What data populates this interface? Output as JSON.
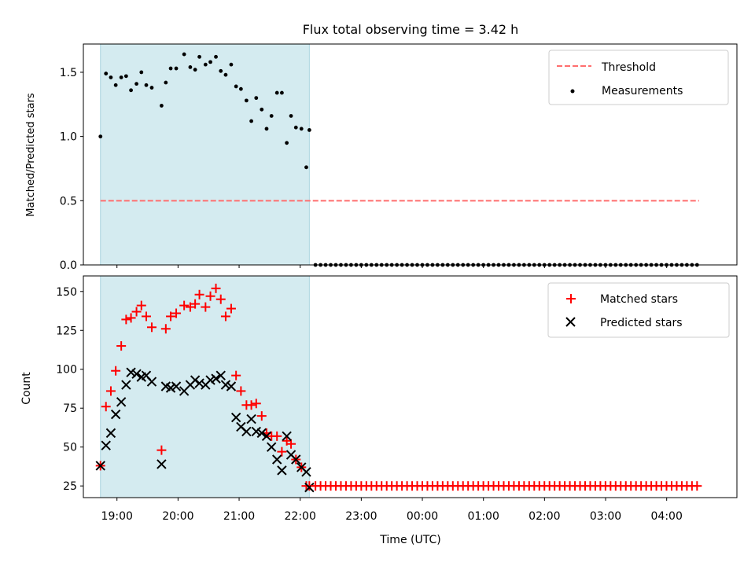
{
  "chart_data": [
    {
      "type": "scatter",
      "title": "Flux total observing time = 3.42 h",
      "xlabel": "",
      "ylabel": "Matched/Predicted stars",
      "xlim": [
        18.45,
        29.15
      ],
      "ylim": [
        0,
        1.72
      ],
      "yticks": [
        0.0,
        0.5,
        1.0,
        1.5
      ],
      "ytick_labels": [
        "0.0",
        "0.5",
        "1.0",
        "1.5"
      ],
      "shaded_region": {
        "x_start": 18.73,
        "x_end": 22.15,
        "color": "#d4ebf0"
      },
      "legend": {
        "position": "top-right",
        "entries": [
          "Threshold",
          "Measurements"
        ]
      },
      "series": [
        {
          "name": "Threshold",
          "style": "dashed-line",
          "color": "#ff6e6e",
          "x": [
            18.73,
            28.53
          ],
          "y": [
            0.5,
            0.5
          ]
        },
        {
          "name": "Measurements",
          "style": "dot",
          "color": "#000000",
          "x": [
            18.73,
            18.82,
            18.9,
            18.98,
            19.07,
            19.15,
            19.23,
            19.32,
            19.4,
            19.48,
            19.57,
            19.73,
            19.8,
            19.88,
            19.97,
            20.1,
            20.2,
            20.28,
            20.35,
            20.45,
            20.53,
            20.62,
            20.7,
            20.78,
            20.87,
            20.95,
            21.03,
            21.12,
            21.2,
            21.28,
            21.37,
            21.45,
            21.53,
            21.62,
            21.7,
            21.78,
            21.85,
            21.93,
            22.02,
            22.1,
            22.15
          ],
          "y": [
            1.0,
            1.49,
            1.46,
            1.4,
            1.46,
            1.47,
            1.36,
            1.41,
            1.5,
            1.4,
            1.38,
            1.24,
            1.42,
            1.53,
            1.53,
            1.64,
            1.54,
            1.52,
            1.62,
            1.56,
            1.58,
            1.62,
            1.51,
            1.48,
            1.56,
            1.39,
            1.37,
            1.28,
            1.12,
            1.3,
            1.21,
            1.06,
            1.16,
            1.34,
            1.34,
            0.95,
            1.16,
            1.07,
            1.06,
            0.76,
            1.05
          ]
        },
        {
          "name": "Measurements (after)",
          "style": "dot",
          "color": "#000000",
          "x_start": 22.25,
          "x_step": 0.0833,
          "x_end": 28.55,
          "y_constant": 0.0
        }
      ]
    },
    {
      "type": "scatter",
      "title": "",
      "xlabel": "Time (UTC)",
      "ylabel": "Count",
      "xlim": [
        18.45,
        29.15
      ],
      "ylim": [
        17.5,
        160
      ],
      "yticks": [
        25,
        50,
        75,
        100,
        125,
        150
      ],
      "ytick_labels": [
        "25",
        "50",
        "75",
        "100",
        "125",
        "150"
      ],
      "xticks": [
        19,
        20,
        21,
        22,
        23,
        24,
        25,
        26,
        27,
        28
      ],
      "xtick_labels": [
        "19:00",
        "20:00",
        "21:00",
        "22:00",
        "23:00",
        "00:00",
        "01:00",
        "02:00",
        "03:00",
        "04:00"
      ],
      "shaded_region": {
        "x_start": 18.73,
        "x_end": 22.15,
        "color": "#d4ebf0"
      },
      "legend": {
        "position": "top-right",
        "entries": [
          "Matched stars",
          "Predicted stars"
        ]
      },
      "series": [
        {
          "name": "Matched stars",
          "marker": "+",
          "color": "#ff0000",
          "x": [
            18.73,
            18.82,
            18.9,
            18.98,
            19.07,
            19.15,
            19.23,
            19.32,
            19.4,
            19.48,
            19.57,
            19.73,
            19.8,
            19.88,
            19.97,
            20.1,
            20.2,
            20.28,
            20.35,
            20.45,
            20.53,
            20.62,
            20.7,
            20.78,
            20.87,
            20.95,
            21.03,
            21.12,
            21.2,
            21.28,
            21.37,
            21.45,
            21.53,
            21.62,
            21.7,
            21.78,
            21.85,
            21.93,
            22.02,
            22.1,
            22.15
          ],
          "y": [
            38,
            76,
            86,
            99,
            115,
            132,
            133,
            137,
            141,
            134,
            127,
            48,
            126,
            134,
            136,
            141,
            140,
            142,
            148,
            140,
            147,
            152,
            145,
            134,
            139,
            96,
            86,
            77,
            77,
            78,
            70,
            59,
            57,
            57,
            47,
            54,
            52,
            42,
            37,
            25,
            25
          ]
        },
        {
          "name": "Predicted stars",
          "marker": "x",
          "color": "#000000",
          "x": [
            18.73,
            18.82,
            18.9,
            18.98,
            19.07,
            19.15,
            19.23,
            19.32,
            19.4,
            19.48,
            19.57,
            19.73,
            19.8,
            19.88,
            19.97,
            20.1,
            20.2,
            20.28,
            20.35,
            20.45,
            20.53,
            20.62,
            20.7,
            20.78,
            20.87,
            20.95,
            21.03,
            21.12,
            21.2,
            21.28,
            21.37,
            21.45,
            21.53,
            21.62,
            21.7,
            21.78,
            21.85,
            21.93,
            22.02,
            22.1,
            22.15
          ],
          "y": [
            38,
            51,
            59,
            71,
            79,
            90,
            98,
            97,
            95,
            96,
            92,
            39,
            89,
            88,
            89,
            86,
            90,
            93,
            91,
            90,
            93,
            94,
            96,
            90,
            89,
            69,
            63,
            60,
            68,
            60,
            59,
            57,
            50,
            42,
            35,
            57,
            45,
            42,
            37,
            34,
            24
          ]
        },
        {
          "name": "Matched stars (after)",
          "marker": "+",
          "color": "#ff0000",
          "x_start": 22.25,
          "x_step": 0.0833,
          "x_end": 28.55,
          "y_constant": 25
        }
      ]
    }
  ]
}
